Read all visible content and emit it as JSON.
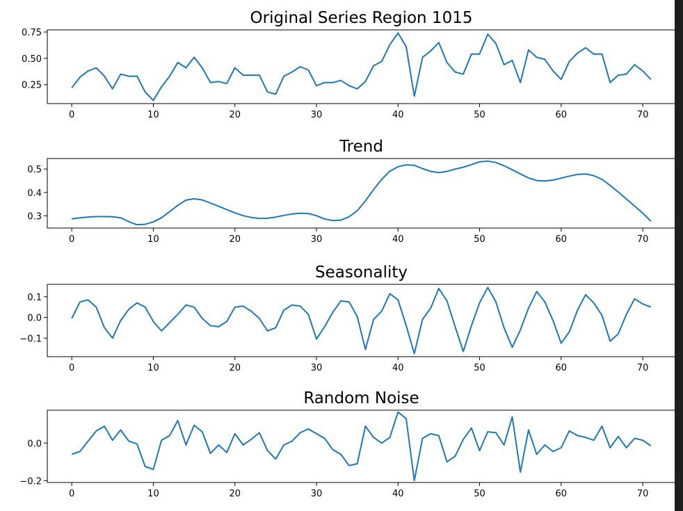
{
  "chart_data": [
    {
      "type": "line",
      "title": "Original Series Region 1015",
      "x": [
        0,
        1,
        2,
        3,
        4,
        5,
        6,
        7,
        8,
        9,
        10,
        11,
        12,
        13,
        14,
        15,
        16,
        17,
        18,
        19,
        20,
        21,
        22,
        23,
        24,
        25,
        26,
        27,
        28,
        29,
        30,
        31,
        32,
        33,
        34,
        35,
        36,
        37,
        38,
        39,
        40,
        41,
        42,
        43,
        44,
        45,
        46,
        47,
        48,
        49,
        50,
        51,
        52,
        53,
        54,
        55,
        56,
        57,
        58,
        59,
        60,
        61,
        62,
        63,
        64,
        65,
        66,
        67,
        68,
        69,
        70,
        71
      ],
      "y": [
        0.22,
        0.32,
        0.38,
        0.41,
        0.33,
        0.21,
        0.35,
        0.33,
        0.33,
        0.18,
        0.1,
        0.23,
        0.33,
        0.46,
        0.41,
        0.51,
        0.41,
        0.27,
        0.28,
        0.26,
        0.41,
        0.34,
        0.34,
        0.34,
        0.18,
        0.16,
        0.33,
        0.37,
        0.42,
        0.39,
        0.24,
        0.27,
        0.27,
        0.29,
        0.24,
        0.21,
        0.28,
        0.43,
        0.47,
        0.63,
        0.74,
        0.61,
        0.14,
        0.51,
        0.57,
        0.65,
        0.46,
        0.37,
        0.35,
        0.54,
        0.54,
        0.73,
        0.64,
        0.44,
        0.48,
        0.27,
        0.58,
        0.51,
        0.49,
        0.38,
        0.3,
        0.47,
        0.55,
        0.6,
        0.54,
        0.54,
        0.27,
        0.34,
        0.35,
        0.44,
        0.38,
        0.3
      ],
      "xlim": [
        -3,
        74
      ],
      "ylim": [
        0.07,
        0.77
      ],
      "xticks": [
        0,
        10,
        20,
        30,
        40,
        50,
        60,
        70
      ],
      "yticks": [
        0.25,
        0.5,
        0.75
      ],
      "ytick_labels": [
        "0.25",
        "0.50",
        "0.75"
      ]
    },
    {
      "type": "line",
      "title": "Trend",
      "x": [
        0,
        1,
        2,
        3,
        4,
        5,
        6,
        7,
        8,
        9,
        10,
        11,
        12,
        13,
        14,
        15,
        16,
        17,
        18,
        19,
        20,
        21,
        22,
        23,
        24,
        25,
        26,
        27,
        28,
        29,
        30,
        31,
        32,
        33,
        34,
        35,
        36,
        37,
        38,
        39,
        40,
        41,
        42,
        43,
        44,
        45,
        46,
        47,
        48,
        49,
        50,
        51,
        52,
        53,
        54,
        55,
        56,
        57,
        58,
        59,
        60,
        61,
        62,
        63,
        64,
        65,
        66,
        67,
        68,
        69,
        70,
        71
      ],
      "y": [
        0.287,
        0.292,
        0.295,
        0.297,
        0.297,
        0.296,
        0.292,
        0.275,
        0.262,
        0.264,
        0.274,
        0.292,
        0.318,
        0.345,
        0.367,
        0.373,
        0.368,
        0.355,
        0.341,
        0.327,
        0.313,
        0.301,
        0.293,
        0.289,
        0.29,
        0.295,
        0.302,
        0.308,
        0.311,
        0.31,
        0.301,
        0.287,
        0.28,
        0.282,
        0.296,
        0.322,
        0.364,
        0.412,
        0.456,
        0.491,
        0.51,
        0.518,
        0.516,
        0.502,
        0.49,
        0.485,
        0.49,
        0.5,
        0.508,
        0.519,
        0.531,
        0.534,
        0.528,
        0.514,
        0.497,
        0.479,
        0.462,
        0.451,
        0.449,
        0.453,
        0.461,
        0.47,
        0.477,
        0.479,
        0.472,
        0.456,
        0.43,
        0.402,
        0.372,
        0.342,
        0.312,
        0.277
      ],
      "xlim": [
        -3,
        74
      ],
      "ylim": [
        0.248,
        0.545
      ],
      "xticks": [
        0,
        10,
        20,
        30,
        40,
        50,
        60,
        70
      ],
      "yticks": [
        0.3,
        0.4,
        0.5
      ],
      "ytick_labels": [
        "0.3",
        "0.4",
        "0.5"
      ]
    },
    {
      "type": "line",
      "title": "Seasonality",
      "x": [
        0,
        1,
        2,
        3,
        4,
        5,
        6,
        7,
        8,
        9,
        10,
        11,
        12,
        13,
        14,
        15,
        16,
        17,
        18,
        19,
        20,
        21,
        22,
        23,
        24,
        25,
        26,
        27,
        28,
        29,
        30,
        31,
        32,
        33,
        34,
        35,
        36,
        37,
        38,
        39,
        40,
        41,
        42,
        43,
        44,
        45,
        46,
        47,
        48,
        49,
        50,
        51,
        52,
        53,
        54,
        55,
        56,
        57,
        58,
        59,
        60,
        61,
        62,
        63,
        64,
        65,
        66,
        67,
        68,
        69,
        70,
        71
      ],
      "y": [
        -0.005,
        0.075,
        0.085,
        0.05,
        -0.05,
        -0.1,
        -0.015,
        0.04,
        0.07,
        0.05,
        -0.02,
        -0.065,
        -0.025,
        0.015,
        0.06,
        0.05,
        -0.005,
        -0.04,
        -0.045,
        -0.02,
        0.05,
        0.055,
        0.03,
        -0.005,
        -0.065,
        -0.05,
        0.035,
        0.06,
        0.055,
        0.015,
        -0.105,
        -0.045,
        0.025,
        0.08,
        0.075,
        0.005,
        -0.155,
        -0.01,
        0.03,
        0.115,
        0.085,
        -0.04,
        -0.175,
        -0.01,
        0.045,
        0.14,
        0.08,
        -0.045,
        -0.165,
        -0.04,
        0.07,
        0.145,
        0.075,
        -0.05,
        -0.145,
        -0.06,
        0.045,
        0.125,
        0.075,
        -0.015,
        -0.125,
        -0.07,
        0.035,
        0.11,
        0.07,
        0.01,
        -0.115,
        -0.08,
        0.015,
        0.09,
        0.065,
        0.05
      ],
      "xlim": [
        -3,
        74
      ],
      "ylim": [
        -0.19,
        0.16
      ],
      "xticks": [
        0,
        10,
        20,
        30,
        40,
        50,
        60,
        70
      ],
      "yticks": [
        -0.1,
        0.0,
        0.1
      ],
      "ytick_labels": [
        "−0.1",
        "0.0",
        "0.1"
      ]
    },
    {
      "type": "line",
      "title": "Random Noise",
      "x": [
        0,
        1,
        2,
        3,
        4,
        5,
        6,
        7,
        8,
        9,
        10,
        11,
        12,
        13,
        14,
        15,
        16,
        17,
        18,
        19,
        20,
        21,
        22,
        23,
        24,
        25,
        26,
        27,
        28,
        29,
        30,
        31,
        32,
        33,
        34,
        35,
        36,
        37,
        38,
        39,
        40,
        41,
        42,
        43,
        44,
        45,
        46,
        47,
        48,
        49,
        50,
        51,
        52,
        53,
        54,
        55,
        56,
        57,
        58,
        59,
        60,
        61,
        62,
        63,
        64,
        65,
        66,
        67,
        68,
        69,
        70,
        71
      ],
      "y": [
        -0.06,
        -0.045,
        0.01,
        0.065,
        0.09,
        0.015,
        0.07,
        0.01,
        -0.005,
        -0.125,
        -0.14,
        0.015,
        0.04,
        0.12,
        -0.01,
        0.095,
        0.06,
        -0.055,
        -0.01,
        -0.05,
        0.05,
        -0.01,
        0.02,
        0.055,
        -0.04,
        -0.085,
        -0.01,
        0.01,
        0.055,
        0.075,
        0.05,
        0.025,
        -0.035,
        -0.06,
        -0.12,
        -0.11,
        0.09,
        0.03,
        0.0,
        0.03,
        0.165,
        0.13,
        -0.2,
        0.025,
        0.05,
        0.04,
        -0.1,
        -0.07,
        0.02,
        0.08,
        -0.04,
        0.06,
        0.055,
        -0.01,
        0.14,
        -0.155,
        0.07,
        -0.06,
        -0.01,
        -0.045,
        -0.025,
        0.065,
        0.04,
        0.03,
        0.015,
        0.09,
        -0.025,
        0.035,
        -0.025,
        0.025,
        0.015,
        -0.015
      ],
      "xlim": [
        -3,
        74
      ],
      "ylim": [
        -0.21,
        0.175
      ],
      "xticks": [
        0,
        10,
        20,
        30,
        40,
        50,
        60,
        70
      ],
      "yticks": [
        -0.2,
        0.0
      ],
      "ytick_labels": [
        "−0.2",
        "0.0"
      ]
    }
  ]
}
